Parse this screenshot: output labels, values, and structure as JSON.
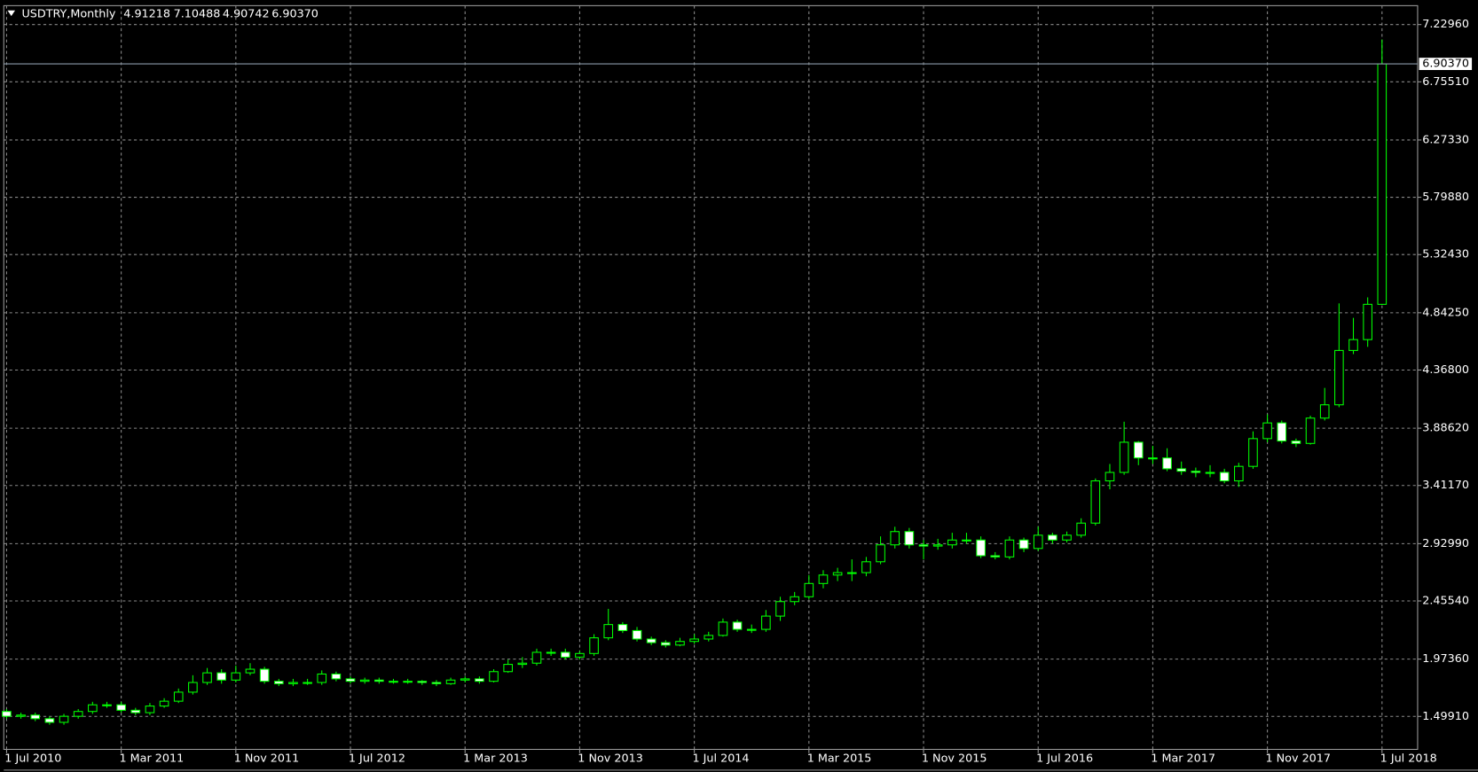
{
  "chart_data": {
    "type": "candlestick",
    "title": "USDTRY,Monthly",
    "up_color": "#000000",
    "down_color": "#ffffff",
    "outline_color": "#00ff00",
    "grid": true,
    "categories": [
      "1 Jul 2010",
      null,
      null,
      null,
      null,
      null,
      null,
      null,
      "1 Mar 2011",
      null,
      null,
      null,
      null,
      null,
      null,
      null,
      "1 Nov 2011",
      null,
      null,
      null,
      null,
      null,
      null,
      null,
      "1 Jul 2012",
      null,
      null,
      null,
      null,
      null,
      null,
      null,
      "1 Mar 2013",
      null,
      null,
      null,
      null,
      null,
      null,
      null,
      "1 Nov 2013",
      null,
      null,
      null,
      null,
      null,
      null,
      null,
      "1 Jul 2014",
      null,
      null,
      null,
      null,
      null,
      null,
      null,
      "1 Mar 2015",
      null,
      null,
      null,
      null,
      null,
      null,
      null,
      "1 Nov 2015",
      null,
      null,
      null,
      null,
      null,
      null,
      null,
      "1 Jul 2016",
      null,
      null,
      null,
      null,
      null,
      null,
      null,
      "1 Mar 2017",
      null,
      null,
      null,
      null,
      null,
      null,
      null,
      "1 Nov 2017",
      null,
      null,
      null,
      null,
      null,
      null,
      null,
      "1 Jul 2018"
    ],
    "open": [
      1.54,
      1.5,
      1.51,
      1.48,
      1.45,
      1.5,
      1.54,
      1.595,
      1.595,
      1.55,
      1.53,
      1.585,
      1.625,
      1.7,
      1.78,
      1.86,
      1.8,
      1.86,
      1.89,
      1.79,
      1.77,
      1.78,
      1.78,
      1.85,
      1.81,
      1.79,
      1.8,
      1.79,
      1.79,
      1.79,
      1.78,
      1.77,
      1.8,
      1.81,
      1.79,
      1.87,
      1.93,
      1.94,
      2.03,
      2.03,
      1.99,
      2.02,
      2.15,
      2.26,
      2.21,
      2.14,
      2.11,
      2.09,
      2.12,
      2.14,
      2.17,
      2.28,
      2.22,
      2.22,
      2.33,
      2.45,
      2.49,
      2.6,
      2.67,
      2.69,
      2.69,
      2.78,
      2.92,
      3.03,
      2.92,
      2.91,
      2.92,
      2.96,
      2.96,
      2.83,
      2.82,
      2.96,
      2.89,
      3.0,
      2.96,
      3.0,
      3.1,
      3.45,
      3.52,
      3.77,
      3.64,
      3.64,
      3.55,
      3.53,
      3.52,
      3.52,
      3.45,
      3.57,
      3.8,
      3.93,
      3.78,
      3.76,
      3.97,
      4.08,
      4.53,
      4.62,
      4.91218
    ],
    "high": [
      1.56,
      1.53,
      1.53,
      1.5,
      1.52,
      1.56,
      1.62,
      1.62,
      1.62,
      1.57,
      1.61,
      1.65,
      1.73,
      1.84,
      1.9,
      1.89,
      1.92,
      1.94,
      1.91,
      1.81,
      1.81,
      1.81,
      1.88,
      1.87,
      1.83,
      1.82,
      1.82,
      1.81,
      1.81,
      1.8,
      1.8,
      1.82,
      1.83,
      1.83,
      1.89,
      1.97,
      1.99,
      2.06,
      2.06,
      2.06,
      2.04,
      2.18,
      2.39,
      2.28,
      2.24,
      2.16,
      2.13,
      2.15,
      2.18,
      2.2,
      2.31,
      2.3,
      2.26,
      2.38,
      2.49,
      2.53,
      2.67,
      2.71,
      2.73,
      2.8,
      2.82,
      2.99,
      3.07,
      3.06,
      2.96,
      2.97,
      3.02,
      3.02,
      2.99,
      2.86,
      2.99,
      2.98,
      3.07,
      3.02,
      3.03,
      3.14,
      3.47,
      3.59,
      3.94,
      3.78,
      3.74,
      3.72,
      3.61,
      3.56,
      3.58,
      3.55,
      3.6,
      3.86,
      4.0,
      3.95,
      3.8,
      3.99,
      4.22,
      4.92,
      4.8,
      4.97,
      7.10488
    ],
    "low": [
      1.48,
      1.48,
      1.46,
      1.43,
      1.43,
      1.48,
      1.52,
      1.57,
      1.53,
      1.51,
      1.51,
      1.57,
      1.61,
      1.68,
      1.76,
      1.77,
      1.78,
      1.84,
      1.77,
      1.75,
      1.75,
      1.76,
      1.76,
      1.79,
      1.77,
      1.77,
      1.77,
      1.77,
      1.77,
      1.76,
      1.75,
      1.76,
      1.78,
      1.77,
      1.78,
      1.86,
      1.9,
      1.92,
      2.0,
      1.97,
      1.97,
      2.0,
      2.13,
      2.19,
      2.12,
      2.09,
      2.07,
      2.08,
      2.1,
      2.12,
      2.16,
      2.2,
      2.19,
      2.2,
      2.29,
      2.42,
      2.47,
      2.56,
      2.62,
      2.62,
      2.66,
      2.76,
      2.89,
      2.89,
      2.8,
      2.88,
      2.89,
      2.93,
      2.81,
      2.8,
      2.8,
      2.86,
      2.87,
      2.93,
      2.94,
      2.98,
      3.08,
      3.38,
      3.5,
      3.58,
      3.59,
      3.53,
      3.5,
      3.48,
      3.48,
      3.43,
      3.4,
      3.55,
      3.77,
      3.76,
      3.73,
      3.75,
      3.95,
      4.06,
      4.5,
      4.56,
      4.90742
    ],
    "close": [
      1.5,
      1.51,
      1.48,
      1.45,
      1.5,
      1.54,
      1.595,
      1.595,
      1.55,
      1.53,
      1.585,
      1.625,
      1.7,
      1.78,
      1.86,
      1.8,
      1.86,
      1.89,
      1.79,
      1.77,
      1.78,
      1.78,
      1.85,
      1.81,
      1.79,
      1.8,
      1.79,
      1.79,
      1.79,
      1.78,
      1.77,
      1.8,
      1.81,
      1.79,
      1.87,
      1.93,
      1.94,
      2.03,
      2.03,
      1.99,
      2.02,
      2.15,
      2.26,
      2.21,
      2.14,
      2.11,
      2.09,
      2.12,
      2.14,
      2.17,
      2.28,
      2.22,
      2.22,
      2.33,
      2.45,
      2.49,
      2.6,
      2.67,
      2.69,
      2.69,
      2.78,
      2.92,
      3.03,
      2.92,
      2.91,
      2.92,
      2.96,
      2.96,
      2.83,
      2.82,
      2.96,
      2.89,
      3.0,
      2.96,
      3.0,
      3.1,
      3.45,
      3.52,
      3.77,
      3.64,
      3.64,
      3.55,
      3.53,
      3.52,
      3.52,
      3.45,
      3.57,
      3.8,
      3.93,
      3.78,
      3.76,
      3.97,
      4.08,
      4.53,
      4.62,
      4.91218,
      6.9037
    ],
    "bid": {
      "value": 6.9037,
      "label": "6.90370"
    },
    "ylim": [
      1.226,
      7.386
    ],
    "yticks": [
      {
        "value": 1.4991,
        "label": "1.49910"
      },
      {
        "value": 1.9736,
        "label": "1.97360"
      },
      {
        "value": 2.4554,
        "label": "2.45540"
      },
      {
        "value": 2.9299,
        "label": "2.92990"
      },
      {
        "value": 3.4117,
        "label": "3.41170"
      },
      {
        "value": 3.8862,
        "label": "3.88620"
      },
      {
        "value": 4.368,
        "label": "4.36800"
      },
      {
        "value": 4.8425,
        "label": "4.84250"
      },
      {
        "value": 5.3243,
        "label": "5.32430"
      },
      {
        "value": 5.7988,
        "label": "5.79880"
      },
      {
        "value": 6.2733,
        "label": "6.27330"
      },
      {
        "value": 6.7551,
        "label": "6.75510"
      },
      {
        "value": 7.2296,
        "label": "7.22960"
      }
    ]
  }
}
